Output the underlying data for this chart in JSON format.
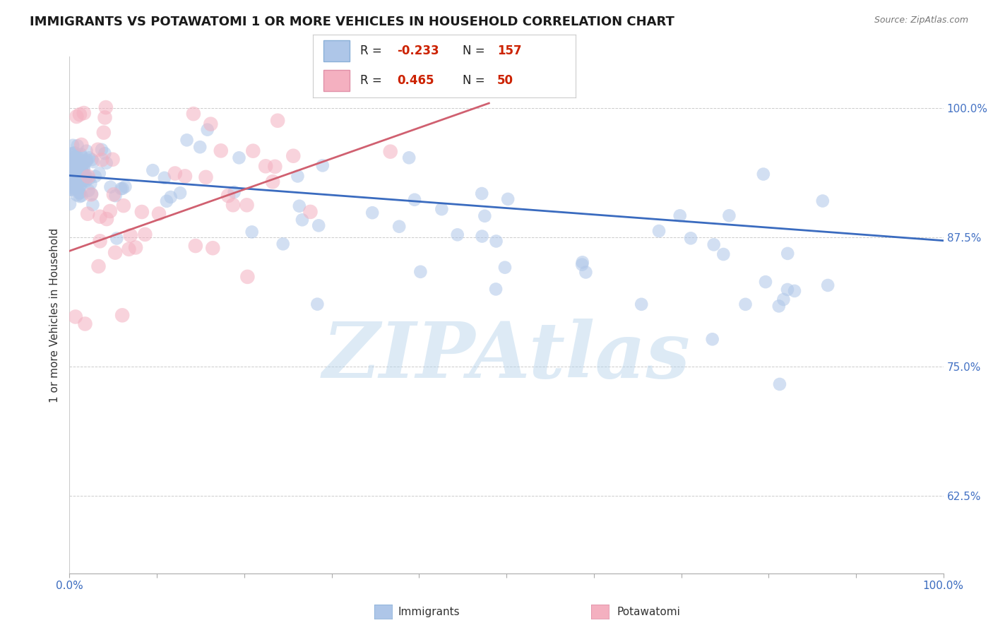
{
  "title": "IMMIGRANTS VS POTAWATOMI 1 OR MORE VEHICLES IN HOUSEHOLD CORRELATION CHART",
  "source": "Source: ZipAtlas.com",
  "ylabel": "1 or more Vehicles in Household",
  "y_tick_labels": [
    "62.5%",
    "75.0%",
    "87.5%",
    "100.0%"
  ],
  "y_tick_values": [
    0.625,
    0.75,
    0.875,
    1.0
  ],
  "immigrants_color": "#aec6e8",
  "potawatomi_color": "#f4b0c0",
  "immigrants_line_color": "#3a6bbf",
  "potawatomi_line_color": "#d06070",
  "background_color": "#ffffff",
  "watermark": "ZIPAtlas",
  "watermark_color_r": 180,
  "watermark_color_g": 210,
  "watermark_color_b": 235,
  "immigrants_R": -0.233,
  "immigrants_N": 157,
  "potawatomi_R": 0.465,
  "potawatomi_N": 50,
  "xlim": [
    0.0,
    1.0
  ],
  "ylim": [
    0.55,
    1.05
  ],
  "title_fontsize": 13,
  "source_fontsize": 9,
  "tick_fontsize": 11,
  "ylabel_fontsize": 11,
  "right_tick_color": "#4472c4",
  "legend_text_color": "#222222",
  "legend_value_color": "#cc2200",
  "bottom_label_immigrants": "Immigrants",
  "bottom_label_potawatomi": "Potawatomi"
}
